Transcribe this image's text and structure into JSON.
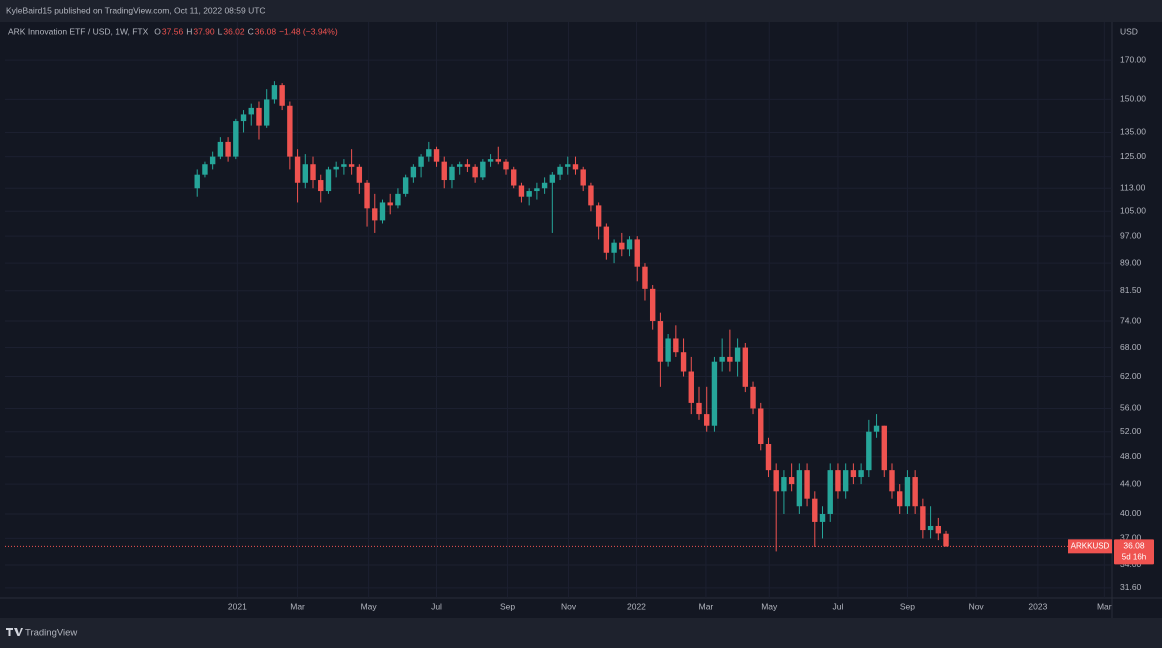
{
  "header": {
    "publisher": "KyleBaird15 published on TradingView.com, Oct 11, 2022 08:59 UTC"
  },
  "footer": {
    "brand": "TradingView"
  },
  "chart_data": {
    "type": "candlestick",
    "title": "ARK Innovation ETF / USD, 1W, FTX",
    "readout": [
      {
        "key": "O",
        "value": "37.56"
      },
      {
        "key": "H",
        "value": "37.90"
      },
      {
        "key": "L",
        "value": "36.02"
      },
      {
        "key": "C",
        "value": "36.08"
      }
    ],
    "change": "−1.48 (−3.94%)",
    "y_axis_label": "USD",
    "last_price": {
      "symbol": "ARKKUSD",
      "price": "36.08",
      "countdown": "5d 16h"
    },
    "up_color": "#26a69a",
    "down_color": "#ef5350",
    "log_scale": true,
    "grid": true,
    "open": [
      113,
      118,
      122,
      125,
      131,
      125,
      140,
      143,
      146,
      138,
      150,
      157,
      147,
      125,
      115,
      122,
      116,
      112,
      120,
      121,
      122,
      121,
      115,
      106,
      102,
      108,
      107,
      111,
      117,
      121,
      125,
      128,
      123,
      116,
      121,
      122,
      121,
      117,
      123,
      124,
      123,
      120,
      114,
      110,
      112,
      113,
      115,
      118,
      121,
      122,
      120,
      114,
      107,
      100,
      92,
      95,
      93,
      96,
      88,
      82,
      74,
      65,
      70,
      67,
      63,
      57,
      55,
      53,
      65,
      66,
      65,
      68,
      60,
      56,
      50,
      46,
      43,
      45,
      41,
      46,
      42,
      39,
      40,
      46,
      43,
      46,
      45,
      46,
      52,
      53,
      46,
      43,
      41,
      45,
      41,
      38,
      38.5,
      37.56
    ],
    "high": [
      120,
      123,
      127,
      133,
      133,
      141,
      145,
      148,
      149,
      155,
      159,
      158,
      149,
      128,
      126,
      125,
      118,
      121,
      123,
      124,
      128,
      122,
      116,
      111,
      109,
      111,
      113,
      118,
      122,
      126,
      131,
      129,
      125,
      122,
      123,
      124,
      122,
      124,
      126,
      129,
      124,
      121,
      115,
      113,
      115,
      117,
      119,
      122,
      125,
      125,
      121,
      115,
      108,
      101,
      96,
      98,
      97,
      97,
      89,
      83,
      76,
      71,
      73,
      70,
      66,
      60,
      60,
      66,
      70,
      72,
      70,
      69,
      61,
      57,
      51,
      47,
      46,
      47,
      47,
      47,
      43,
      41,
      47,
      47,
      47,
      47,
      47,
      54,
      55,
      53,
      47,
      44,
      46,
      46,
      42,
      41,
      39.5,
      37.9
    ],
    "low": [
      110,
      117,
      120,
      124,
      123,
      124,
      135,
      138,
      132,
      137,
      148,
      145,
      120,
      108,
      113,
      113,
      108,
      111,
      117,
      118,
      118,
      111,
      100,
      98,
      101,
      104,
      106,
      110,
      115,
      117,
      123,
      121,
      113,
      113,
      118,
      119,
      115,
      116,
      121,
      122,
      118,
      113,
      108,
      107,
      109,
      111,
      98,
      116,
      118,
      118,
      112,
      105,
      96,
      90,
      89,
      91,
      91,
      84,
      79,
      72,
      60,
      64,
      66,
      62,
      55,
      54,
      52,
      52,
      63,
      63,
      62,
      59,
      55,
      49,
      45,
      35.5,
      40,
      43,
      40,
      41,
      36,
      37,
      39,
      42,
      42,
      44,
      44,
      45,
      51,
      45,
      42,
      40,
      40,
      40,
      37,
      37,
      36.8,
      36.02
    ],
    "close": [
      118,
      122,
      125,
      131,
      125,
      140,
      143,
      146,
      138,
      150,
      157,
      147,
      125,
      115,
      122,
      116,
      112,
      120,
      121,
      122,
      121,
      115,
      106,
      102,
      108,
      107,
      111,
      117,
      121,
      125,
      128,
      123,
      116,
      121,
      122,
      121,
      117,
      123,
      124,
      123,
      120,
      114,
      110,
      112,
      113,
      115,
      118,
      121,
      122,
      120,
      114,
      107,
      100,
      92,
      95,
      93,
      96,
      88,
      82,
      74,
      65,
      70,
      67,
      63,
      57,
      55,
      53,
      65,
      66,
      65,
      68,
      60,
      56,
      50,
      46,
      43,
      45,
      44,
      46,
      42,
      39,
      40,
      46,
      43,
      46,
      45,
      46,
      52,
      53,
      46,
      43,
      41,
      45,
      41,
      38,
      38.5,
      37.6,
      36.08
    ],
    "xlim": [
      -24.9,
      118.5
    ],
    "xticks": [
      {
        "value": 5.2,
        "label": "2021"
      },
      {
        "value": 13.0,
        "label": "Mar"
      },
      {
        "value": 22.2,
        "label": "May"
      },
      {
        "value": 31.0,
        "label": "Jul"
      },
      {
        "value": 40.2,
        "label": "Sep"
      },
      {
        "value": 48.1,
        "label": "Nov"
      },
      {
        "value": 56.9,
        "label": "2022"
      },
      {
        "value": 65.9,
        "label": "Mar"
      },
      {
        "value": 74.1,
        "label": "May"
      },
      {
        "value": 83.0,
        "label": "Jul"
      },
      {
        "value": 92.0,
        "label": "Sep"
      },
      {
        "value": 100.9,
        "label": "Nov"
      },
      {
        "value": 108.9,
        "label": "2023"
      },
      {
        "value": 117.5,
        "label": "Mar"
      }
    ],
    "ylim": [
      30.6,
      192
    ],
    "yticks": [
      {
        "value": 170,
        "label": "170.00"
      },
      {
        "value": 150,
        "label": "150.00"
      },
      {
        "value": 135,
        "label": "135.00"
      },
      {
        "value": 125,
        "label": "125.00"
      },
      {
        "value": 113,
        "label": "113.00"
      },
      {
        "value": 105,
        "label": "105.00"
      },
      {
        "value": 97,
        "label": "97.00"
      },
      {
        "value": 89,
        "label": "89.00"
      },
      {
        "value": 81.5,
        "label": "81.50"
      },
      {
        "value": 74,
        "label": "74.00"
      },
      {
        "value": 68,
        "label": "68.00"
      },
      {
        "value": 62,
        "label": "62.00"
      },
      {
        "value": 56,
        "label": "56.00"
      },
      {
        "value": 52,
        "label": "52.00"
      },
      {
        "value": 48,
        "label": "48.00"
      },
      {
        "value": 44,
        "label": "44.00"
      },
      {
        "value": 40,
        "label": "40.00"
      },
      {
        "value": 37,
        "label": "37.00"
      },
      {
        "value": 34,
        "label": "34.00"
      },
      {
        "value": 31.6,
        "label": "31.60"
      }
    ]
  }
}
